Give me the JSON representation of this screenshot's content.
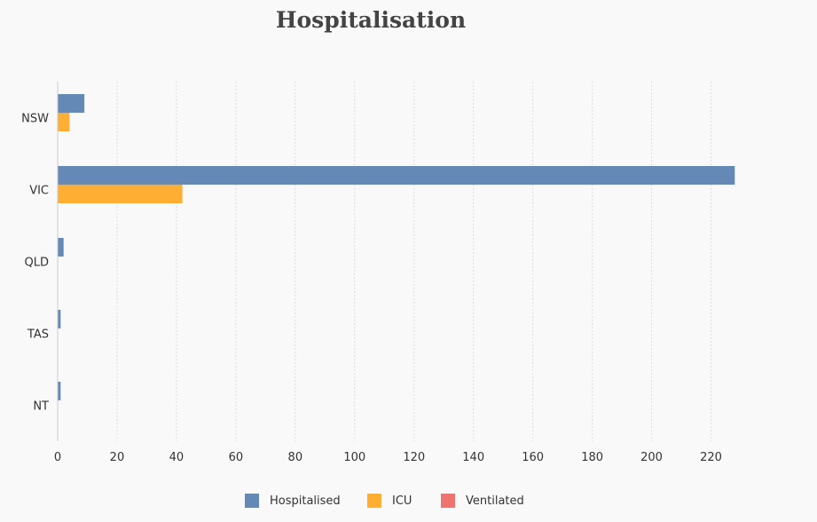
{
  "chart_data": {
    "type": "bar",
    "orientation": "horizontal",
    "title": "Hospitalisation",
    "xlabel": "",
    "ylabel": "",
    "categories": [
      "NSW",
      "VIC",
      "QLD",
      "TAS",
      "NT"
    ],
    "series": [
      {
        "name": "Hospitalised",
        "color": "#6589b6",
        "values": [
          9,
          228,
          2,
          1,
          1
        ]
      },
      {
        "name": "ICU",
        "color": "#ffae34",
        "values": [
          4,
          42,
          0,
          0,
          0
        ]
      },
      {
        "name": "Ventilated",
        "color": "#ef7470",
        "values": [
          0,
          0,
          0,
          0,
          0
        ]
      }
    ],
    "xlim": [
      0,
      230
    ],
    "xticks": [
      0,
      20,
      40,
      60,
      80,
      100,
      120,
      140,
      160,
      180,
      200,
      220
    ],
    "grid": true,
    "legend_position": "bottom"
  }
}
